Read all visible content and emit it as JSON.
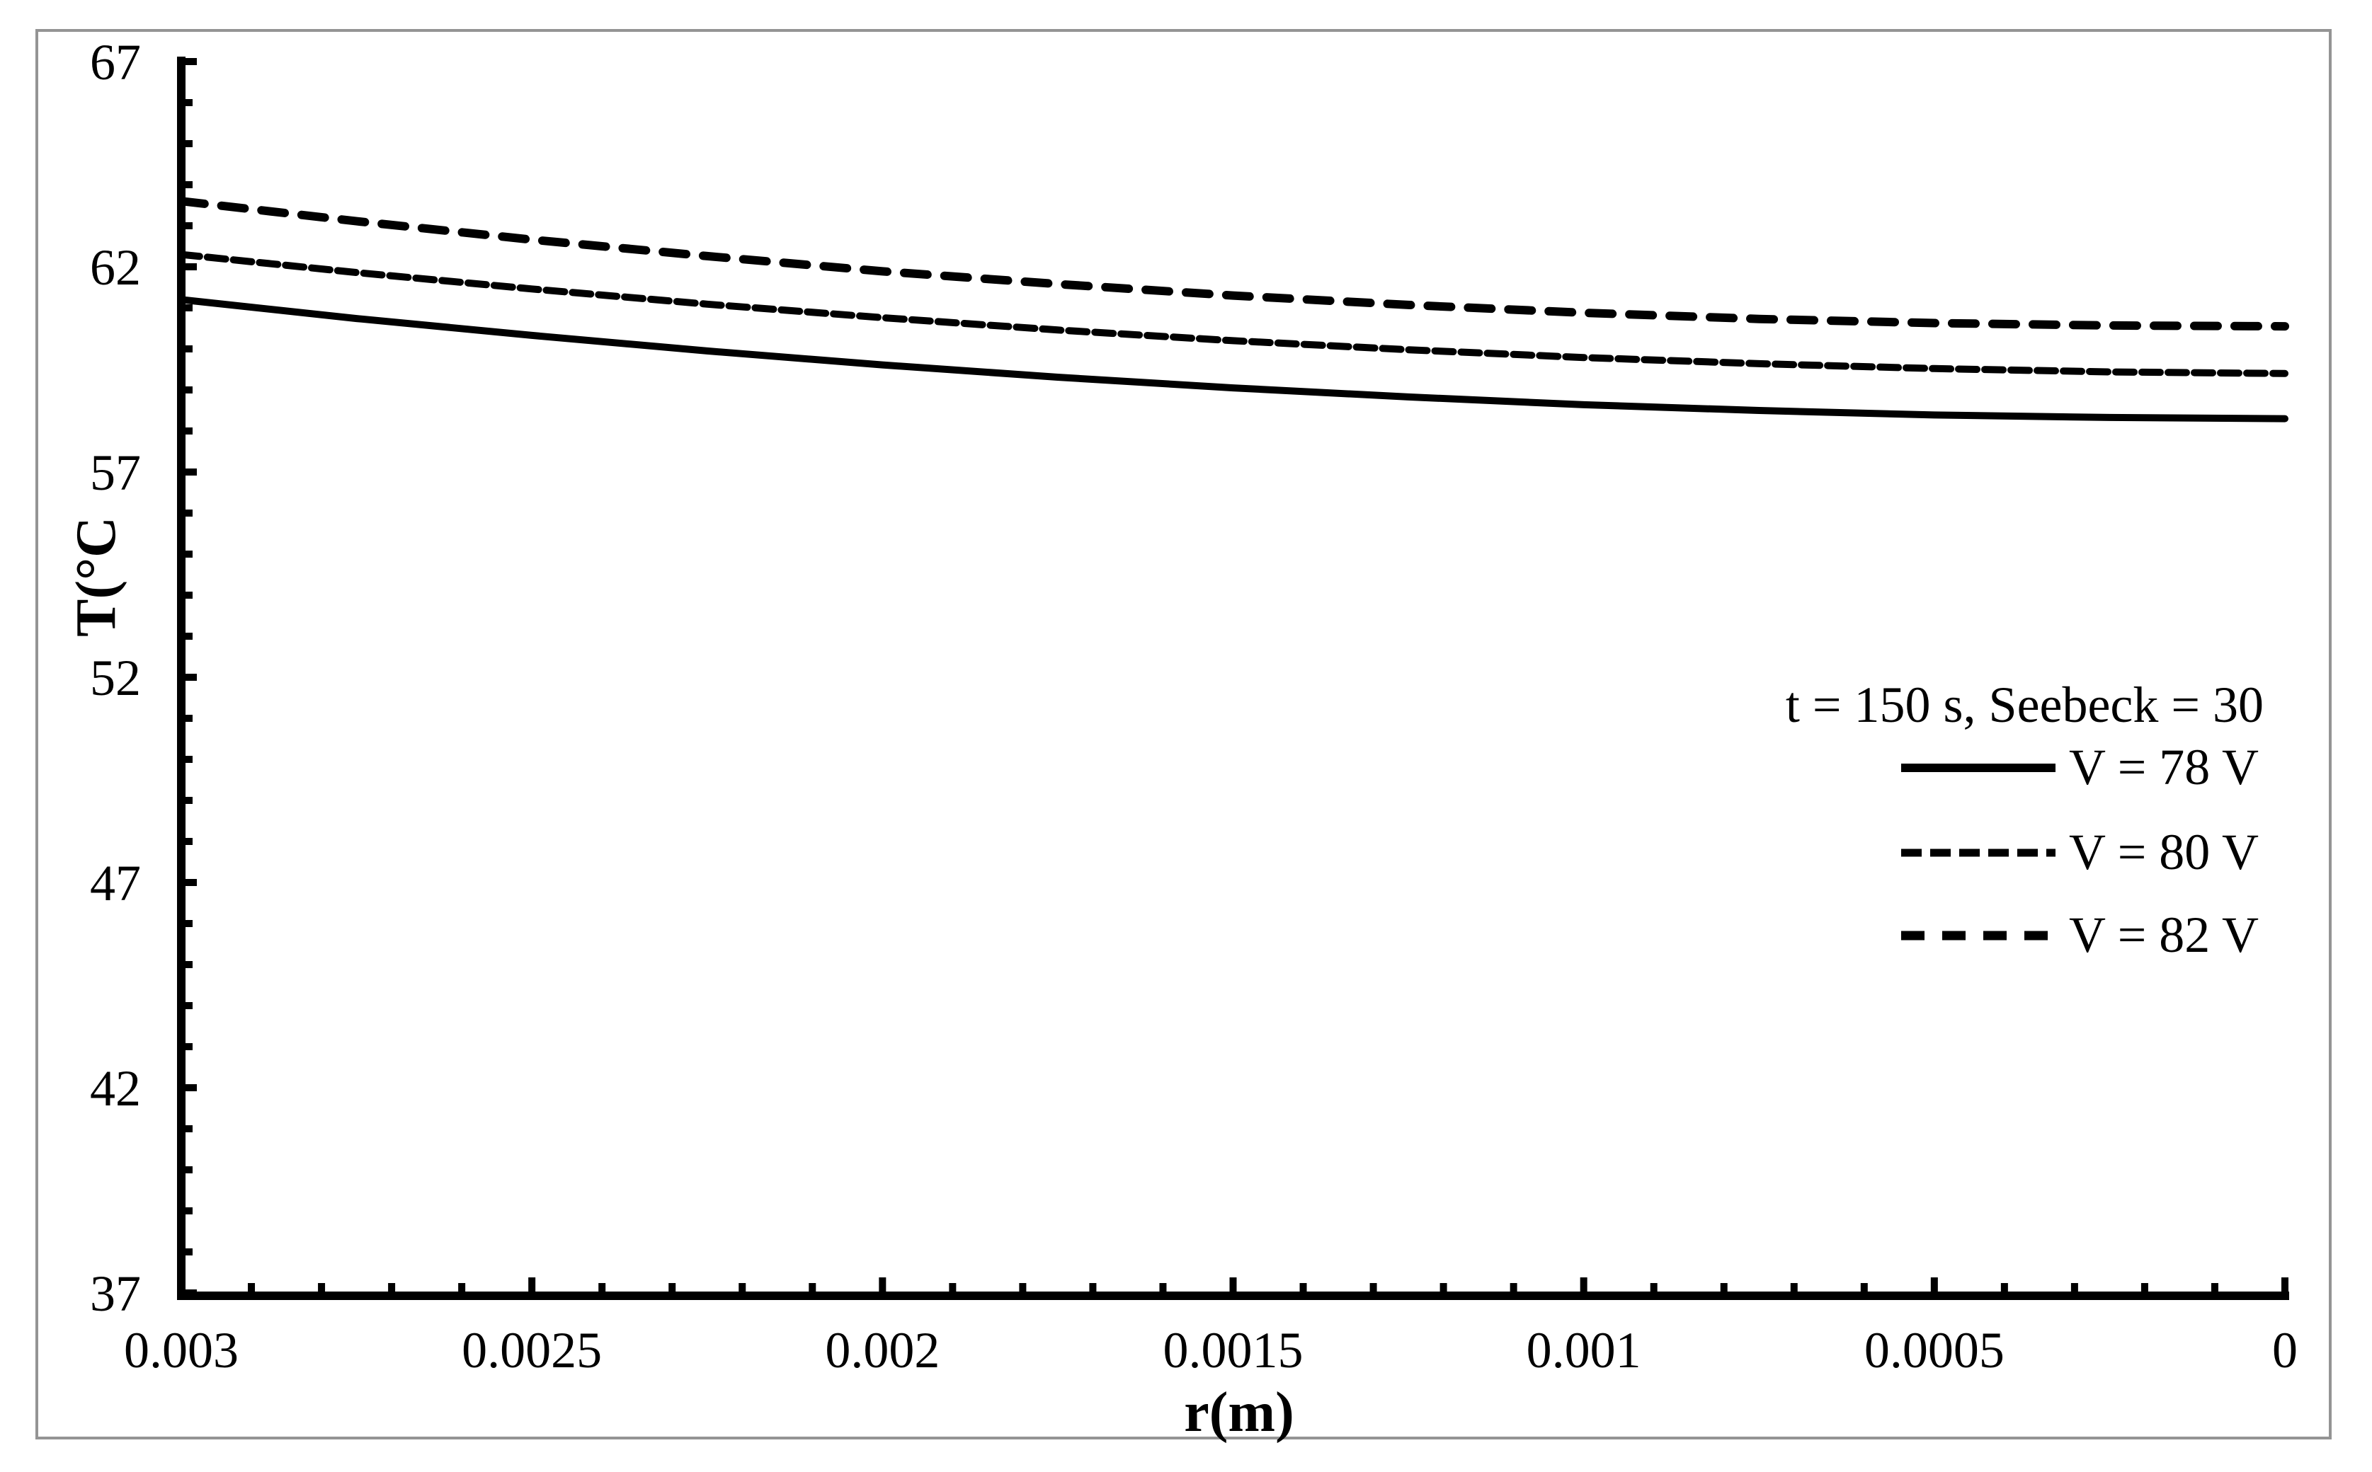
{
  "figure": {
    "background_color": "#ffffff",
    "border_color": "#949494",
    "line_color": "#000000"
  },
  "chart_data": {
    "type": "line",
    "title": "",
    "xlabel": "r(m)",
    "ylabel": "T(°C",
    "xlim": [
      0.003,
      0
    ],
    "ylim": [
      37,
      67
    ],
    "x_axis_reversed": true,
    "grid": false,
    "x_tick_labels": [
      "0.003",
      "0.0025",
      "0.002",
      "0.0015",
      "0.001",
      "0.0005",
      "0"
    ],
    "x_tick_values": [
      0.003,
      0.0025,
      0.002,
      0.0015,
      0.001,
      0.0005,
      0
    ],
    "x_minor_step": 0.0001,
    "y_tick_labels": [
      "67",
      "62",
      "57",
      "52",
      "47",
      "42",
      "37"
    ],
    "y_tick_values": [
      67,
      62,
      57,
      52,
      47,
      42,
      37
    ],
    "y_minor_step": 1,
    "legend": {
      "position": "right-middle",
      "title": "t = 150 s, Seebeck = 30",
      "entries": [
        {
          "label": "V = 78 V",
          "style": "solid"
        },
        {
          "label": "V = 80 V",
          "style": "dash-fine"
        },
        {
          "label": "V = 82 V",
          "style": "dash-coarse"
        }
      ]
    },
    "x": [
      0.003,
      0.00275,
      0.0025,
      0.00225,
      0.002,
      0.00175,
      0.0015,
      0.00125,
      0.001,
      0.00075,
      0.0005,
      0.00025,
      0
    ],
    "series": [
      {
        "name": "V = 78 V",
        "style": "solid",
        "values": [
          61.2,
          60.74,
          60.33,
          59.95,
          59.61,
          59.31,
          59.05,
          58.83,
          58.64,
          58.5,
          58.39,
          58.33,
          58.3
        ]
      },
      {
        "name": "V = 80 V",
        "style": "dash-fine",
        "values": [
          62.3,
          61.86,
          61.46,
          61.09,
          60.76,
          60.46,
          60.2,
          59.98,
          59.79,
          59.64,
          59.52,
          59.44,
          59.4
        ]
      },
      {
        "name": "V = 82 V",
        "style": "dash-coarse",
        "values": [
          63.6,
          63.11,
          62.66,
          62.26,
          61.89,
          61.58,
          61.3,
          61.07,
          60.88,
          60.73,
          60.63,
          60.57,
          60.55
        ]
      }
    ]
  }
}
